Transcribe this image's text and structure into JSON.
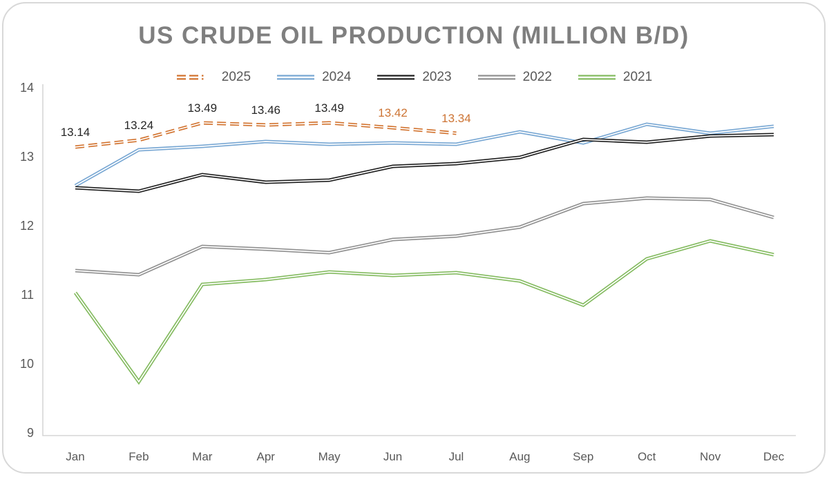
{
  "chart_data": {
    "type": "line",
    "title": "US CRUDE OIL PRODUCTION (MILLION B/D)",
    "xlabel": "",
    "ylabel": "",
    "categories": [
      "Jan",
      "Feb",
      "Mar",
      "Apr",
      "May",
      "Jun",
      "Jul",
      "Aug",
      "Sep",
      "Oct",
      "Nov",
      "Dec"
    ],
    "ylim": [
      9,
      14
    ],
    "yticks": [
      14,
      13,
      12,
      11,
      10,
      9
    ],
    "grid": false,
    "legend_position": "top-center",
    "series": [
      {
        "name": "2025",
        "color": "#d2732f",
        "line_style": "dashed",
        "values": [
          13.14,
          13.24,
          13.49,
          13.46,
          13.49,
          13.42,
          13.34
        ],
        "data_labels": [
          "13.14",
          "13.24",
          "13.49",
          "13.46",
          "13.49",
          "13.42",
          "13.34"
        ],
        "data_label_colors": [
          "#262626",
          "#262626",
          "#262626",
          "#262626",
          "#262626",
          "#cd7434",
          "#cd7434"
        ]
      },
      {
        "name": "2024",
        "color": "#78a7d3",
        "line_style": "solid",
        "values": [
          12.58,
          13.1,
          13.15,
          13.22,
          13.18,
          13.2,
          13.18,
          13.36,
          13.2,
          13.47,
          13.34,
          13.44
        ]
      },
      {
        "name": "2023",
        "color": "#1f1f1f",
        "line_style": "solid",
        "values": [
          12.55,
          12.5,
          12.74,
          12.63,
          12.66,
          12.86,
          12.9,
          12.99,
          13.25,
          13.21,
          13.3,
          13.32
        ]
      },
      {
        "name": "2022",
        "color": "#909090",
        "line_style": "solid",
        "values": [
          11.35,
          11.29,
          11.7,
          11.66,
          11.61,
          11.8,
          11.85,
          11.98,
          12.32,
          12.4,
          12.38,
          12.12
        ]
      },
      {
        "name": "2021",
        "color": "#84bb60",
        "line_style": "solid",
        "values": [
          11.03,
          9.74,
          11.15,
          11.22,
          11.33,
          11.28,
          11.32,
          11.2,
          10.85,
          11.52,
          11.78,
          11.58
        ]
      }
    ],
    "axis_color": "#d6d6d6",
    "tick_label_color": "#595959",
    "title_color": "#7f7f7f"
  }
}
